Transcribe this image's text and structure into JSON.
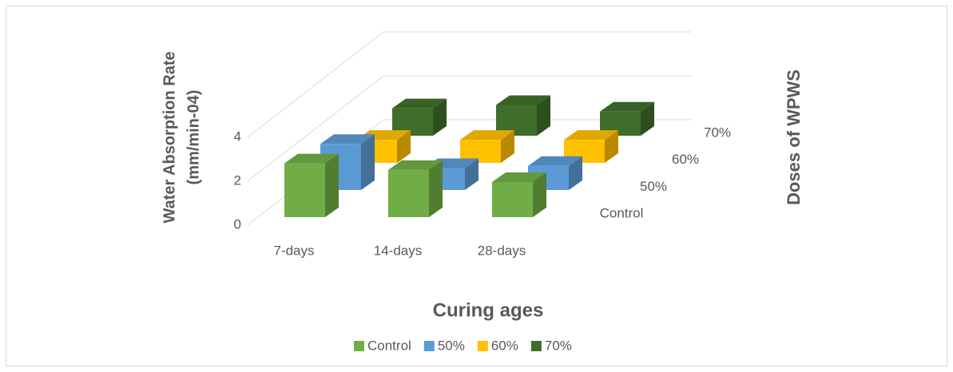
{
  "chart_data": {
    "type": "bar3d",
    "x_title": "Curing ages",
    "y_title": [
      "Water Absorption Rate",
      "(mm/min-04)"
    ],
    "z_title": "Doses of WPWS",
    "categories": [
      "7-days",
      "14-days",
      "28-days"
    ],
    "series": [
      {
        "name": "Control",
        "color": "#70ad47",
        "values": [
          2.45,
          2.15,
          1.6
        ]
      },
      {
        "name": "50%",
        "color": "#5b9bd5",
        "values": [
          2.1,
          1.0,
          1.1
        ]
      },
      {
        "name": "60%",
        "color": "#ffc000",
        "values": [
          1.05,
          1.05,
          1.05
        ]
      },
      {
        "name": "70%",
        "color": "#3f6e2a",
        "values": [
          1.25,
          1.4,
          1.1
        ]
      }
    ],
    "ylim": [
      0,
      4
    ],
    "yticks": [
      0,
      2,
      4
    ],
    "grid": true,
    "legend": "bottom"
  }
}
